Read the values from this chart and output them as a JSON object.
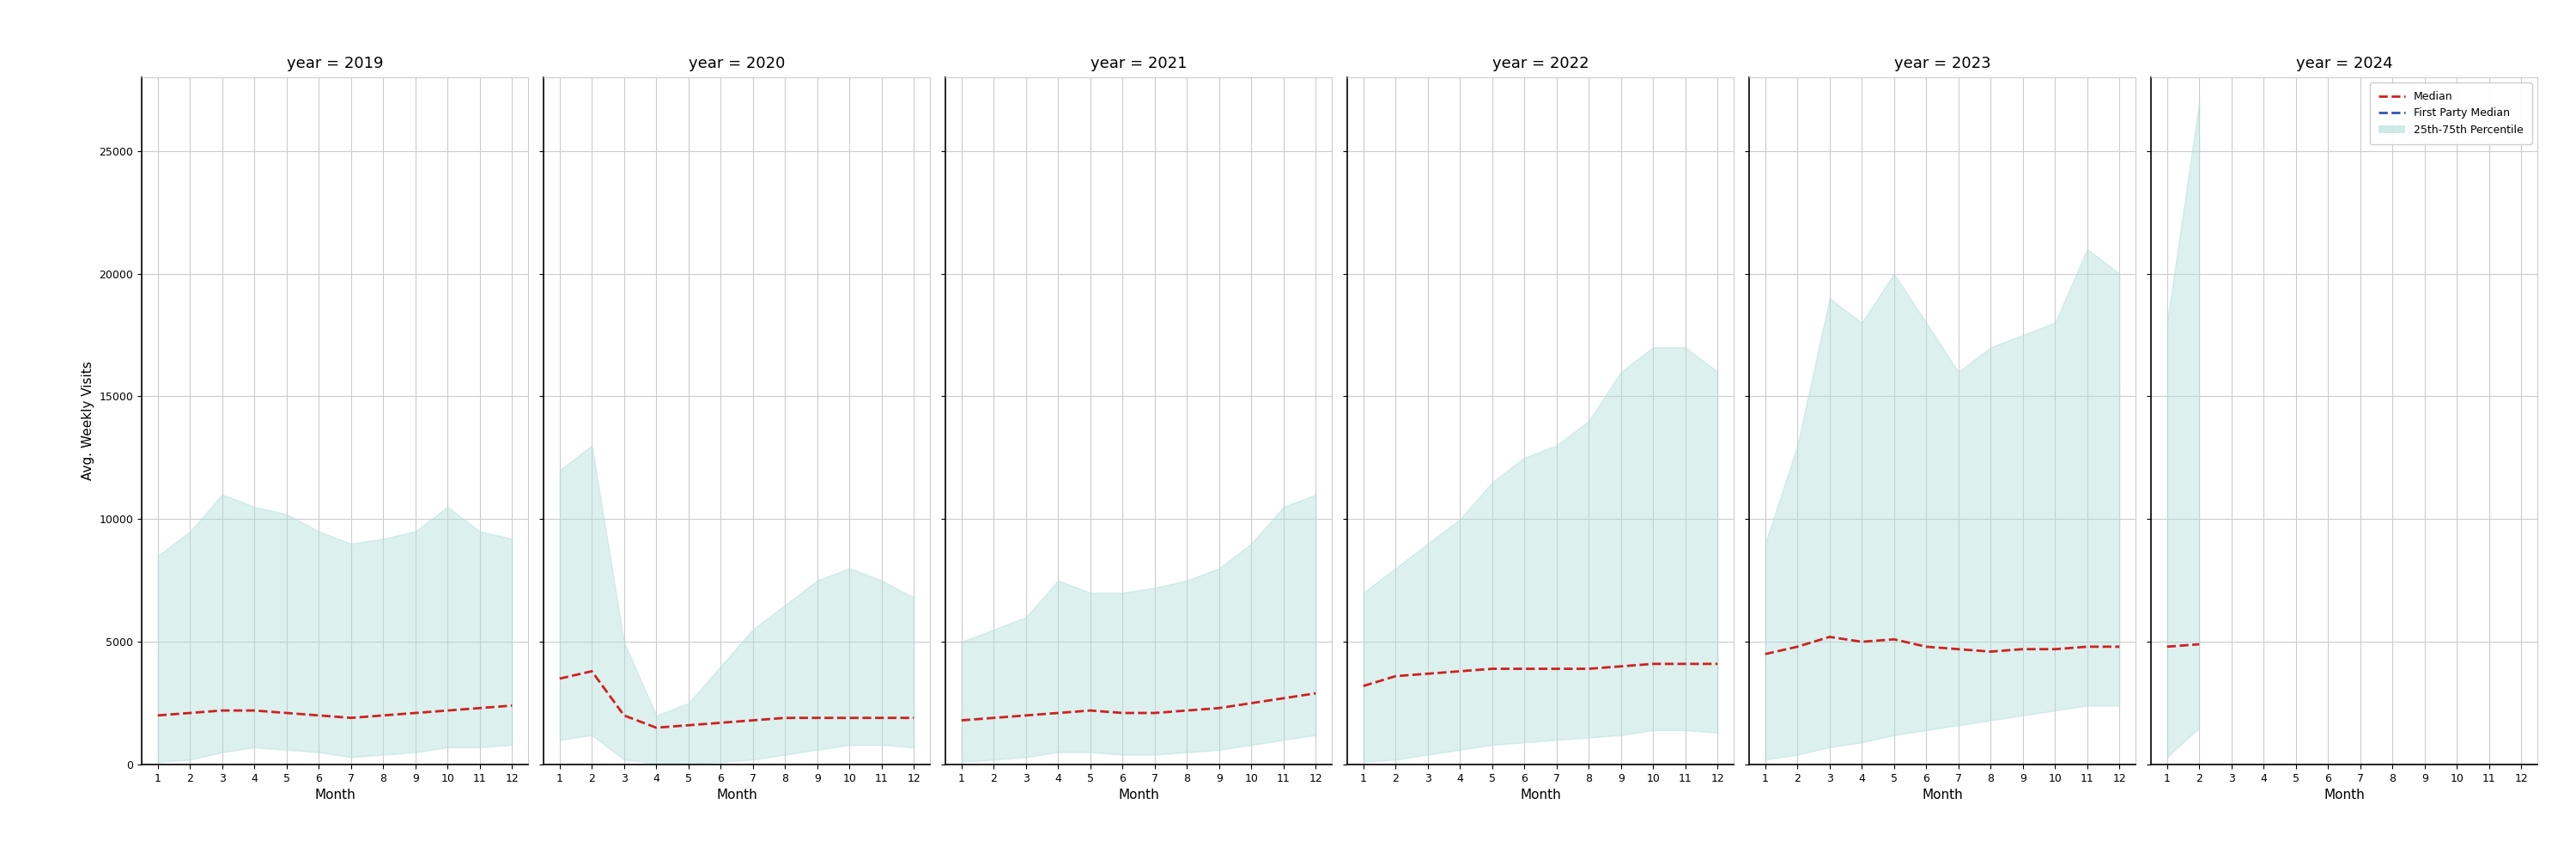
{
  "years": [
    2019,
    2020,
    2021,
    2022,
    2023,
    2024
  ],
  "months": [
    1,
    2,
    3,
    4,
    5,
    6,
    7,
    8,
    9,
    10,
    11,
    12
  ],
  "median": {
    "2019": [
      2000,
      2100,
      2200,
      2200,
      2100,
      2000,
      1900,
      2000,
      2100,
      2200,
      2300,
      2400
    ],
    "2020": [
      3500,
      3800,
      2000,
      1500,
      1600,
      1700,
      1800,
      1900,
      1900,
      1900,
      1900,
      1900
    ],
    "2021": [
      1800,
      1900,
      2000,
      2100,
      2200,
      2100,
      2100,
      2200,
      2300,
      2500,
      2700,
      2900
    ],
    "2022": [
      3200,
      3600,
      3700,
      3800,
      3900,
      3900,
      3900,
      3900,
      4000,
      4100,
      4100,
      4100
    ],
    "2023": [
      4500,
      4800,
      5200,
      5000,
      5100,
      4800,
      4700,
      4600,
      4700,
      4700,
      4800,
      4800
    ],
    "2024": [
      4800,
      4900
    ]
  },
  "p25": {
    "2019": [
      100,
      200,
      500,
      700,
      600,
      500,
      300,
      400,
      500,
      700,
      700,
      800
    ],
    "2020": [
      1000,
      1200,
      200,
      50,
      50,
      100,
      200,
      400,
      600,
      800,
      800,
      700
    ],
    "2021": [
      100,
      200,
      300,
      500,
      500,
      400,
      400,
      500,
      600,
      800,
      1000,
      1200
    ],
    "2022": [
      100,
      200,
      400,
      600,
      800,
      900,
      1000,
      1100,
      1200,
      1400,
      1400,
      1300
    ],
    "2023": [
      200,
      400,
      700,
      900,
      1200,
      1400,
      1600,
      1800,
      2000,
      2200,
      2400,
      2400
    ],
    "2024": [
      300,
      1500
    ]
  },
  "p75": {
    "2019": [
      8500,
      9500,
      11000,
      10500,
      10200,
      9500,
      9000,
      9200,
      9500,
      10500,
      9500,
      9200
    ],
    "2020": [
      12000,
      13000,
      5000,
      2000,
      2500,
      4000,
      5500,
      6500,
      7500,
      8000,
      7500,
      6800
    ],
    "2021": [
      5000,
      5500,
      6000,
      7500,
      7000,
      7000,
      7200,
      7500,
      8000,
      9000,
      10500,
      11000
    ],
    "2022": [
      7000,
      8000,
      9000,
      10000,
      11500,
      12500,
      13000,
      14000,
      16000,
      17000,
      17000,
      16000
    ],
    "2023": [
      9000,
      13000,
      19000,
      18000,
      20000,
      18000,
      16000,
      17000,
      17500,
      18000,
      21000,
      20000
    ],
    "2024": [
      18000,
      27000
    ]
  },
  "ylim": [
    0,
    28000
  ],
  "yticks": [
    0,
    5000,
    10000,
    15000,
    20000,
    25000
  ],
  "fill_color": "#b2dfdb",
  "fill_alpha": 0.45,
  "median_color": "#cc2222",
  "fp_color": "#3355aa",
  "ylabel": "Avg. Weekly Visits",
  "xlabel": "Month",
  "background_color": "#ffffff",
  "grid_color": "#cccccc",
  "title_fontsize": 13,
  "label_fontsize": 11,
  "tick_fontsize": 9
}
